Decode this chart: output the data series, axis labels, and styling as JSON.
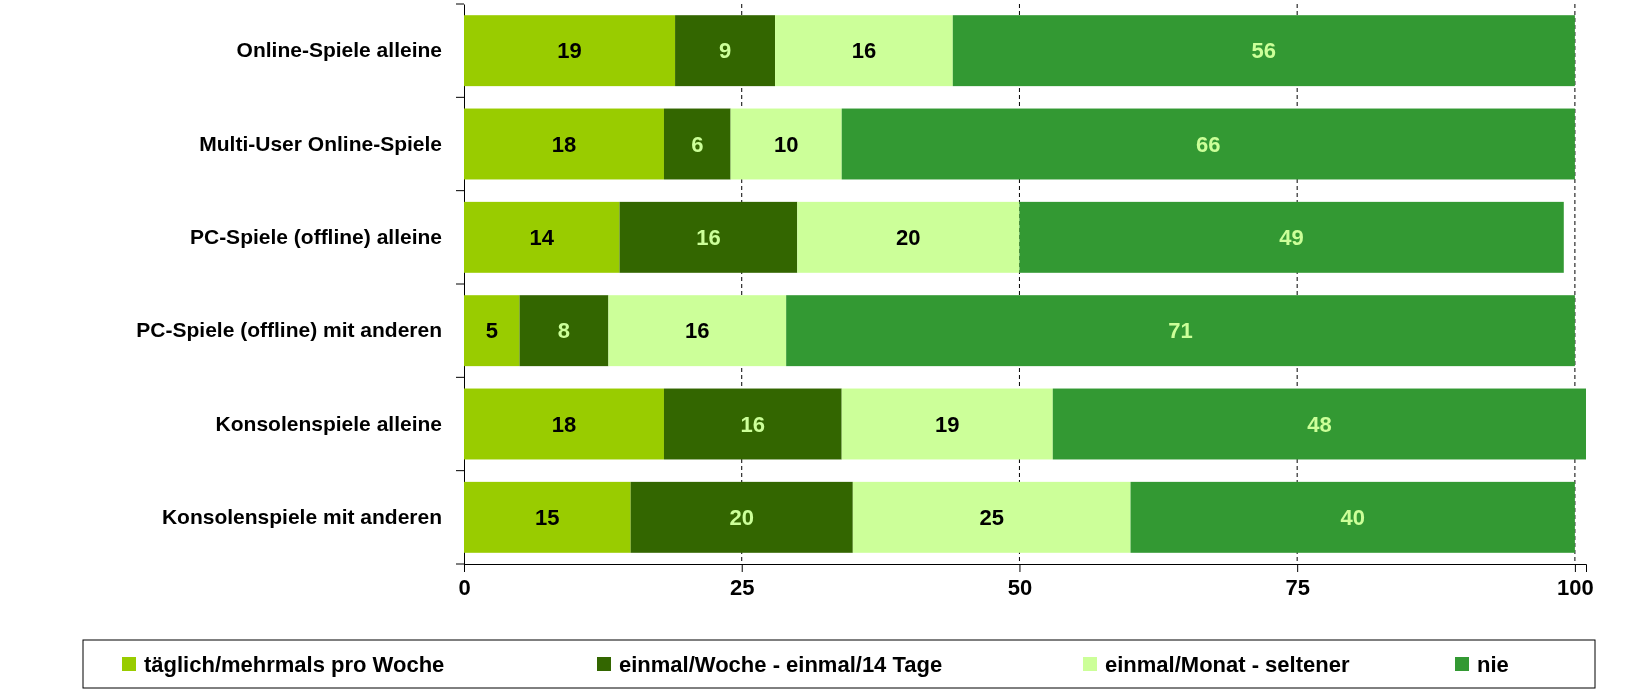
{
  "chart_data": {
    "type": "bar",
    "orientation": "horizontal",
    "stacked": true,
    "data_labels": true,
    "grid": "x",
    "legend": "bottom",
    "categories": [
      "Online-Spiele alleine",
      "Multi-User Online-Spiele",
      "PC-Spiele (offline) alleine",
      "PC-Spiele (offline) mit anderen",
      "Konsolenspiele alleine",
      "Konsolenspiele mit anderen"
    ],
    "series": [
      {
        "name": "täglich/mehrmals pro Woche",
        "color": "#99cc00",
        "values": [
          19,
          18,
          14,
          5,
          18,
          15
        ]
      },
      {
        "name": "einmal/Woche - einmal/14 Tage",
        "color": "#336600",
        "values": [
          9,
          6,
          16,
          8,
          16,
          20
        ]
      },
      {
        "name": "einmal/Monat - seltener",
        "color": "#ccff99",
        "values": [
          16,
          10,
          20,
          16,
          19,
          25
        ]
      },
      {
        "name": "nie",
        "color": "#339933",
        "values": [
          56,
          66,
          49,
          71,
          48,
          40
        ]
      }
    ],
    "xlim": [
      0,
      101
    ],
    "xticks": [
      0,
      25,
      50,
      75,
      100
    ]
  }
}
